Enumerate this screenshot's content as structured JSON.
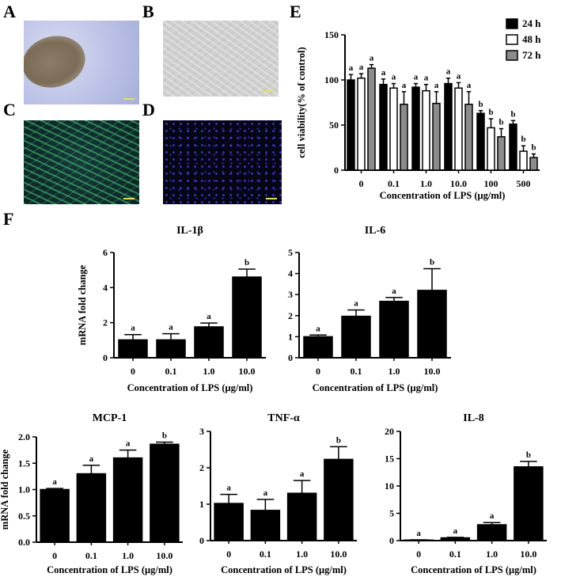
{
  "panels": {
    "A": "A",
    "B": "B",
    "C": "C",
    "D": "D",
    "E": "E",
    "F": "F"
  },
  "colors": {
    "black": "#000000",
    "white": "#ffffff",
    "gray": "#8c8c8c"
  },
  "chart_data": [
    {
      "id": "E",
      "type": "bar",
      "title": "",
      "xlabel": "Concentration of LPS (μg/ml)",
      "ylabel": "cell viability(% of control)",
      "ylim": [
        0,
        150
      ],
      "yticks": [
        "0",
        "50",
        "100",
        "150"
      ],
      "categories": [
        "0",
        "0.1",
        "1.0",
        "10.0",
        "100",
        "500"
      ],
      "legend_position": "top-right",
      "series": [
        {
          "name": "24 h",
          "fill": "#000000",
          "values": [
            100,
            95,
            92,
            96,
            63,
            51
          ],
          "errors": [
            6,
            6,
            4,
            6,
            3,
            4
          ],
          "labels": [
            "a",
            "a",
            "a",
            "a",
            "b",
            "b"
          ]
        },
        {
          "name": "48 h",
          "fill": "#ffffff",
          "values": [
            102,
            91,
            88,
            91,
            47,
            21
          ],
          "errors": [
            5,
            5,
            7,
            6,
            10,
            6
          ],
          "labels": [
            "a",
            "a",
            "a",
            "a",
            "b",
            "b"
          ]
        },
        {
          "name": "72 h",
          "fill": "#8c8c8c",
          "values": [
            113,
            73,
            74,
            73,
            37,
            14
          ],
          "errors": [
            4,
            14,
            13,
            14,
            9,
            4
          ],
          "labels": [
            "a",
            "a",
            "a",
            "a",
            "b",
            "b"
          ]
        }
      ]
    },
    {
      "id": "IL-1b",
      "type": "bar",
      "title": "IL-1β",
      "xlabel": "Concentration of LPS (μg/ml)",
      "ylabel": "mRNA fold change",
      "ylim": [
        0,
        6
      ],
      "yticks": [
        "0",
        "2",
        "4",
        "6"
      ],
      "categories": [
        "0",
        "0.1",
        "1.0",
        "10.0"
      ],
      "values": [
        1.02,
        1.02,
        1.76,
        4.6
      ],
      "errors": [
        0.3,
        0.35,
        0.22,
        0.45
      ],
      "labels": [
        "a",
        "a",
        "a",
        "b"
      ]
    },
    {
      "id": "IL-6",
      "type": "bar",
      "title": "IL-6",
      "xlabel": "Concentration of LPS (μg/ml)",
      "ylabel": "",
      "ylim": [
        0,
        5
      ],
      "yticks": [
        "0",
        "1",
        "2",
        "3",
        "4",
        "5"
      ],
      "categories": [
        "0",
        "0.1",
        "1.0",
        "10.0"
      ],
      "values": [
        1.0,
        1.97,
        2.68,
        3.2
      ],
      "errors": [
        0.08,
        0.3,
        0.18,
        1.03
      ],
      "labels": [
        "a",
        "a",
        "a",
        "b"
      ]
    },
    {
      "id": "MCP-1",
      "type": "bar",
      "title": "MCP-1",
      "xlabel": "Concentration of LPS (μg/ml)",
      "ylabel": "mRNA fold change",
      "ylim": [
        0,
        2.0
      ],
      "yticks": [
        "0.0",
        "0.5",
        "1.0",
        "1.5",
        "2.0"
      ],
      "categories": [
        "0",
        "0.1",
        "1.0",
        "10.0"
      ],
      "values": [
        1.0,
        1.3,
        1.6,
        1.86
      ],
      "errors": [
        0.02,
        0.16,
        0.15,
        0.04
      ],
      "labels": [
        "a",
        "a",
        "a",
        "b"
      ]
    },
    {
      "id": "TNF-a",
      "type": "bar",
      "title": "TNF-α",
      "xlabel": "Concentration of LPS (μg/ml)",
      "ylabel": "",
      "ylim": [
        0,
        3
      ],
      "yticks": [
        "0",
        "1",
        "2",
        "3"
      ],
      "categories": [
        "0",
        "0.1",
        "1.0",
        "10.0"
      ],
      "values": [
        1.02,
        0.83,
        1.3,
        2.23
      ],
      "errors": [
        0.25,
        0.3,
        0.35,
        0.35
      ],
      "labels": [
        "a",
        "a",
        "a",
        "b"
      ]
    },
    {
      "id": "IL-8",
      "type": "bar",
      "title": "IL-8",
      "xlabel": "Concentration of LPS (μg/ml)",
      "ylabel": "",
      "ylim": [
        0,
        20
      ],
      "yticks": [
        "0",
        "5",
        "10",
        "15",
        "20"
      ],
      "categories": [
        "0",
        "0.1",
        "1.0",
        "10.0"
      ],
      "values": [
        0.1,
        0.5,
        2.9,
        13.5
      ],
      "errors": [
        0.05,
        0.1,
        0.4,
        1.0
      ],
      "labels": [
        "a",
        "a",
        "a",
        "b"
      ]
    }
  ]
}
